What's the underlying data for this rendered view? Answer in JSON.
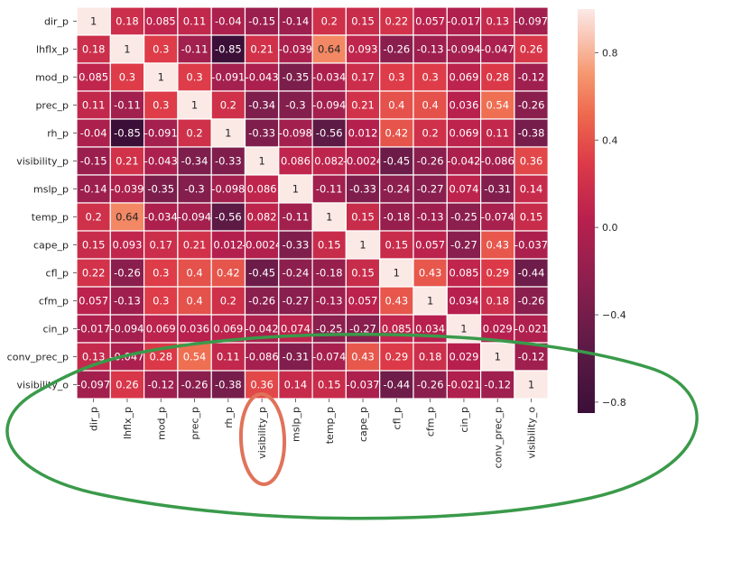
{
  "chart_data": {
    "type": "heatmap",
    "title": "",
    "xlabel": "",
    "ylabel": "",
    "rows": [
      "dir_p",
      "lhflx_p",
      "mod_p",
      "prec_p",
      "rh_p",
      "visibility_p",
      "mslp_p",
      "temp_p",
      "cape_p",
      "cfl_p",
      "cfm_p",
      "cin_p",
      "conv_prec_p",
      "visibility_o"
    ],
    "columns": [
      "dir_p",
      "lhflx_p",
      "mod_p",
      "prec_p",
      "rh_p",
      "visibility_p",
      "mslp_p",
      "temp_p",
      "cape_p",
      "cfl_p",
      "cfm_p",
      "cin_p",
      "conv_prec_p",
      "visibility_o"
    ],
    "values": [
      [
        1,
        0.18,
        0.085,
        0.11,
        -0.04,
        -0.15,
        -0.14,
        0.2,
        0.15,
        0.22,
        0.057,
        -0.017,
        0.13,
        -0.097
      ],
      [
        0.18,
        1,
        0.3,
        -0.11,
        -0.85,
        0.21,
        -0.039,
        0.64,
        0.093,
        -0.26,
        -0.13,
        -0.094,
        -0.047,
        0.26
      ],
      [
        0.085,
        0.3,
        1,
        0.3,
        -0.091,
        -0.043,
        -0.35,
        -0.034,
        0.17,
        0.3,
        0.3,
        0.069,
        0.28,
        -0.12
      ],
      [
        0.11,
        -0.11,
        0.3,
        1,
        0.2,
        -0.34,
        -0.3,
        -0.094,
        0.21,
        0.4,
        0.4,
        0.036,
        0.54,
        -0.26
      ],
      [
        -0.04,
        -0.85,
        -0.091,
        0.2,
        1,
        -0.33,
        -0.098,
        -0.56,
        0.012,
        0.42,
        0.2,
        0.069,
        0.11,
        -0.38
      ],
      [
        -0.15,
        0.21,
        -0.043,
        -0.34,
        -0.33,
        1,
        0.086,
        0.082,
        -0.0024,
        -0.45,
        -0.26,
        -0.042,
        -0.086,
        0.36
      ],
      [
        -0.14,
        -0.039,
        -0.35,
        -0.3,
        -0.098,
        0.086,
        1,
        -0.11,
        -0.33,
        -0.24,
        -0.27,
        0.074,
        -0.31,
        0.14
      ],
      [
        0.2,
        0.64,
        -0.034,
        -0.094,
        -0.56,
        0.082,
        -0.11,
        1,
        0.15,
        -0.18,
        -0.13,
        -0.25,
        -0.074,
        0.15
      ],
      [
        0.15,
        0.093,
        0.17,
        0.21,
        0.012,
        -0.0024,
        -0.33,
        0.15,
        1,
        0.15,
        0.057,
        -0.27,
        0.43,
        -0.037
      ],
      [
        0.22,
        -0.26,
        0.3,
        0.4,
        0.42,
        -0.45,
        -0.24,
        -0.18,
        0.15,
        1,
        0.43,
        0.085,
        0.29,
        -0.44
      ],
      [
        0.057,
        -0.13,
        0.3,
        0.4,
        0.2,
        -0.26,
        -0.27,
        -0.13,
        0.057,
        0.43,
        1,
        0.034,
        0.18,
        -0.26
      ],
      [
        -0.017,
        -0.094,
        0.069,
        0.036,
        0.069,
        -0.042,
        0.074,
        -0.25,
        -0.27,
        0.085,
        0.034,
        1,
        0.029,
        -0.021
      ],
      [
        0.13,
        -0.047,
        0.28,
        0.54,
        0.11,
        -0.086,
        -0.31,
        -0.074,
        0.43,
        0.29,
        0.18,
        0.029,
        1,
        -0.12
      ],
      [
        -0.097,
        0.26,
        -0.12,
        -0.26,
        -0.38,
        0.36,
        0.14,
        0.15,
        -0.037,
        -0.44,
        -0.26,
        -0.021,
        -0.12,
        1
      ]
    ],
    "display_labels": [
      [
        "1",
        "0.18",
        "0.085",
        "0.11",
        "-0.04",
        "-0.15",
        "-0.14",
        "0.2",
        "0.15",
        "0.22",
        "0.057",
        "-0.017",
        "0.13",
        "-0.097"
      ],
      [
        "0.18",
        "1",
        "0.3",
        "-0.11",
        "-0.85",
        "0.21",
        "-0.039",
        "0.64",
        "0.093",
        "-0.26",
        "-0.13",
        "-0.094",
        "-0.047",
        "0.26"
      ],
      [
        "0.085",
        "0.3",
        "1",
        "0.3",
        "-0.091",
        "-0.043",
        "-0.35",
        "-0.034",
        "0.17",
        "0.3",
        "0.3",
        "0.069",
        "0.28",
        "-0.12"
      ],
      [
        "0.11",
        "-0.11",
        "0.3",
        "1",
        "0.2",
        "-0.34",
        "-0.3",
        "-0.094",
        "0.21",
        "0.4",
        "0.4",
        "0.036",
        "0.54",
        "-0.26"
      ],
      [
        "-0.04",
        "-0.85",
        "-0.091",
        "0.2",
        "1",
        "-0.33",
        "-0.098",
        "-0.56",
        "0.012",
        "0.42",
        "0.2",
        "0.069",
        "0.11",
        "-0.38"
      ],
      [
        "-0.15",
        "0.21",
        "-0.043",
        "-0.34",
        "-0.33",
        "1",
        "0.086",
        "0.082",
        "-0.0024",
        "-0.45",
        "-0.26",
        "-0.042",
        "-0.086",
        "0.36"
      ],
      [
        "-0.14",
        "-0.039",
        "-0.35",
        "-0.3",
        "-0.098",
        "0.086",
        "1",
        "-0.11",
        "-0.33",
        "-0.24",
        "-0.27",
        "0.074",
        "-0.31",
        "0.14"
      ],
      [
        "0.2",
        "0.64",
        "-0.034",
        "-0.094",
        "-0.56",
        "0.082",
        "-0.11",
        "1",
        "0.15",
        "-0.18",
        "-0.13",
        "-0.25",
        "-0.074",
        "0.15"
      ],
      [
        "0.15",
        "0.093",
        "0.17",
        "0.21",
        "0.012",
        "-0.0024",
        "-0.33",
        "0.15",
        "1",
        "0.15",
        "0.057",
        "-0.27",
        "0.43",
        "-0.037"
      ],
      [
        "0.22",
        "-0.26",
        "0.3",
        "0.4",
        "0.42",
        "-0.45",
        "-0.24",
        "-0.18",
        "0.15",
        "1",
        "0.43",
        "0.085",
        "0.29",
        "-0.44"
      ],
      [
        "0.057",
        "-0.13",
        "0.3",
        "0.4",
        "0.2",
        "-0.26",
        "-0.27",
        "-0.13",
        "0.057",
        "0.43",
        "1",
        "0.034",
        "0.18",
        "-0.26"
      ],
      [
        "-0.017",
        "-0.094",
        "0.069",
        "0.036",
        "0.069",
        "-0.042",
        "0.074",
        "-0.25",
        "-0.27",
        "0.085",
        "0.034",
        "1",
        "0.029",
        "-0.021"
      ],
      [
        "0.13",
        "-0.047",
        "0.28",
        "0.54",
        "0.11",
        "-0.086",
        "-0.31",
        "-0.074",
        "0.43",
        "0.29",
        "0.18",
        "0.029",
        "1",
        "-0.12"
      ],
      [
        "-0.097",
        "0.26",
        "-0.12",
        "-0.26",
        "-0.38",
        "0.36",
        "0.14",
        "0.15",
        "-0.037",
        "-0.44",
        "-0.26",
        "-0.021",
        "-0.12",
        "1"
      ]
    ],
    "colorbar": {
      "vmin": -0.85,
      "vmax": 1,
      "ticks": [
        0.8,
        0.4,
        0.0,
        -0.4,
        -0.8
      ],
      "tick_labels": [
        "0.8",
        "0.4",
        "0.0",
        "−0.4",
        "−0.8"
      ]
    },
    "colormap_stops": [
      {
        "v": 0.0,
        "c": "#3b0f38"
      },
      {
        "v": 0.15,
        "c": "#5a1a45"
      },
      {
        "v": 0.32,
        "c": "#8a1f4e"
      },
      {
        "v": 0.48,
        "c": "#b8204e"
      },
      {
        "v": 0.62,
        "c": "#dd3b48"
      },
      {
        "v": 0.74,
        "c": "#ee6a4e"
      },
      {
        "v": 0.84,
        "c": "#f5986f"
      },
      {
        "v": 0.93,
        "c": "#f9c6b4"
      },
      {
        "v": 1.0,
        "c": "#fbe9e6"
      }
    ],
    "grid": true,
    "annotations": [
      {
        "shape": "ellipse",
        "color": "#3a9a4a",
        "description": "green hand-drawn ellipse around bottom rows and x-axis labels"
      },
      {
        "shape": "ellipse",
        "color": "#e0735a",
        "description": "orange ellipse around visibility_p x-axis label"
      }
    ]
  }
}
